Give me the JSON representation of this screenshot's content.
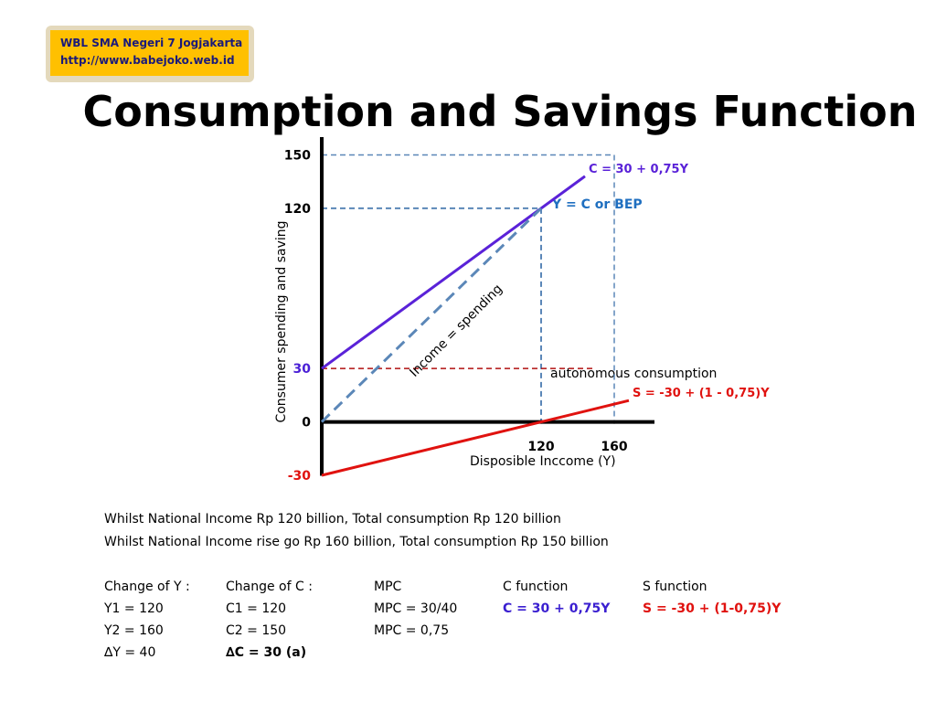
{
  "badge": {
    "lines": [
      "WBL SMA Negeri 7 Jogjakarta",
      "http://www.babejoko.web.id"
    ]
  },
  "chart_data": {
    "type": "line",
    "title": "Consumption and Savings Function",
    "x_label": "Disposible Inccome (Y)",
    "y_label": "Consumer spending and saving",
    "xlim": [
      0,
      182
    ],
    "ylim": [
      -30,
      160
    ],
    "xticks": [
      120,
      160
    ],
    "yticks": [
      -30,
      0,
      30,
      120,
      150
    ],
    "ytick_colors": [
      "#e0120f",
      "#000000",
      "#4a1fd6",
      "#000000",
      "#000000"
    ],
    "series": [
      {
        "name": "C = 30 + 0,75Y",
        "color": "#5a22d8",
        "x": [
          0,
          144
        ],
        "values": [
          30,
          138
        ],
        "dash": false
      },
      {
        "name": "Income = spending",
        "color": "#5b87b8",
        "x": [
          0,
          120
        ],
        "values": [
          0,
          120
        ],
        "dash": true
      },
      {
        "name": "S = -30 + (1 - 0,75)Y",
        "color": "#e0120f",
        "x": [
          0,
          168
        ],
        "values": [
          -30,
          12
        ],
        "dash": false
      }
    ],
    "guides": [
      {
        "color": "#5b87b8",
        "x": [
          0,
          160,
          160
        ],
        "values": [
          150,
          150,
          0
        ]
      },
      {
        "color": "#5b87b8",
        "x": [
          0,
          120,
          120
        ],
        "values": [
          120,
          120,
          0
        ]
      },
      {
        "color": "#b01010",
        "x": [
          0,
          148
        ],
        "values": [
          30,
          30
        ]
      }
    ],
    "annotations": [
      "Y = C  or BEP",
      "autonomous consumption"
    ]
  },
  "notes": [
    "Whilst National Income Rp 120 billion, Total consumption Rp 120 billion",
    "Whilst National Income rise go Rp 160 billion, Total consumption Rp 150 billion"
  ],
  "table": {
    "rows": [
      [
        "Change of Y :",
        "Change of C :",
        "MPC",
        "C function",
        "S function"
      ],
      [
        "Y1 = 120",
        "C1 = 120",
        "MPC = 30/40",
        "C = 30 + 0,75Y",
        "S = -30 + (1-0,75)Y"
      ],
      [
        "Y2 = 160",
        "C2 = 150",
        "MPC = 0,75",
        null,
        null
      ],
      [
        "∆Y =   40",
        "∆C =  30  (a)",
        null,
        null,
        null
      ]
    ]
  }
}
